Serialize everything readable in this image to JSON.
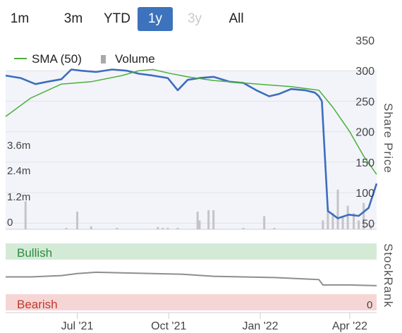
{
  "range_selector": {
    "buttons": [
      {
        "label": "1m",
        "state": "normal"
      },
      {
        "label": "3m",
        "state": "normal"
      },
      {
        "label": "YTD",
        "state": "normal"
      },
      {
        "label": "1y",
        "state": "active"
      },
      {
        "label": "3y",
        "state": "disabled"
      },
      {
        "label": "All",
        "state": "normal"
      }
    ]
  },
  "colors": {
    "price_line": "#3d6dbd",
    "sma_line": "#4caf3a",
    "volume_bar": "#c4c4c8",
    "stockrank_line": "#8e8e8e",
    "bullish_band": "#d3ead7",
    "bullish_text": "#2e8b3e",
    "bearish_band": "#f6d5d5",
    "bearish_text": "#c0392b",
    "active_button": "#3d72bc"
  },
  "chart_data": [
    {
      "type": "line",
      "panel": "price",
      "y_axis_title": "Share Price",
      "y_ticks": [
        50,
        100,
        150,
        200,
        250,
        300,
        350
      ],
      "ylim": [
        40,
        350
      ],
      "x_ticks": [
        "Jul '21",
        "Oct '21",
        "Jan '22",
        "Apr '22"
      ],
      "legend": [
        "SMA (50)",
        "Volume"
      ],
      "series": [
        {
          "name": "",
          "style": "price",
          "x": [
            "2021-04-20",
            "2021-05-05",
            "2021-05-20",
            "2021-06-01",
            "2021-06-15",
            "2021-06-25",
            "2021-07-05",
            "2021-07-20",
            "2021-08-05",
            "2021-08-20",
            "2021-09-01",
            "2021-09-15",
            "2021-09-30",
            "2021-10-10",
            "2021-10-20",
            "2021-11-01",
            "2021-11-15",
            "2021-12-01",
            "2021-12-15",
            "2021-12-28",
            "2022-01-10",
            "2022-01-20",
            "2022-02-01",
            "2022-02-15",
            "2022-02-25",
            "2022-03-01",
            "2022-03-04",
            "2022-03-10",
            "2022-03-20",
            "2022-03-31",
            "2022-04-10",
            "2022-04-20",
            "2022-04-28"
          ],
          "y": [
            292,
            288,
            278,
            282,
            286,
            302,
            300,
            298,
            302,
            300,
            295,
            292,
            288,
            268,
            285,
            288,
            290,
            282,
            280,
            268,
            258,
            262,
            270,
            268,
            264,
            258,
            250,
            70,
            58,
            64,
            62,
            75,
            115
          ]
        },
        {
          "name": "SMA (50)",
          "style": "sma",
          "x": [
            "2021-04-20",
            "2021-05-15",
            "2021-06-15",
            "2021-07-15",
            "2021-08-15",
            "2021-09-01",
            "2021-09-15",
            "2021-10-01",
            "2021-10-20",
            "2021-11-15",
            "2021-12-15",
            "2022-01-15",
            "2022-02-01",
            "2022-02-20",
            "2022-03-01",
            "2022-03-15",
            "2022-04-01",
            "2022-04-15",
            "2022-04-28"
          ],
          "y": [
            225,
            255,
            278,
            282,
            292,
            300,
            302,
            296,
            290,
            284,
            280,
            276,
            274,
            270,
            268,
            240,
            200,
            160,
            130
          ]
        }
      ]
    },
    {
      "type": "bar",
      "panel": "volume",
      "name": "Volume",
      "y_ticks": [
        "0",
        "1.2m",
        "2.4m",
        "3.6m"
      ],
      "ylim": [
        0,
        4.8
      ],
      "x": [
        "2021-05-10",
        "2021-06-20",
        "2021-07-01",
        "2021-07-15",
        "2021-08-10",
        "2021-09-20",
        "2021-09-25",
        "2021-09-30",
        "2021-10-10",
        "2021-10-30",
        "2021-11-01",
        "2021-11-10",
        "2021-11-15",
        "2021-12-15",
        "2022-01-05",
        "2022-01-15",
        "2022-03-05",
        "2022-03-10",
        "2022-03-15",
        "2022-03-20",
        "2022-03-25",
        "2022-03-30",
        "2022-04-05",
        "2022-04-10",
        "2022-04-15",
        "2022-04-22"
      ],
      "values": [
        1.9,
        0.1,
        1.2,
        0.2,
        0.1,
        0.15,
        0.1,
        0.1,
        0.1,
        1.2,
        0.6,
        1.3,
        1.3,
        0.1,
        0.9,
        0.1,
        0.6,
        1.5,
        1.1,
        2.7,
        0.9,
        1.6,
        1.1,
        0.6,
        1.8,
        0.3
      ]
    },
    {
      "type": "line",
      "panel": "stockrank",
      "y_axis_title": "StockRank",
      "bands": [
        "Bullish",
        "Bearish"
      ],
      "y_ticks": [
        0
      ],
      "ylim": [
        0,
        100
      ],
      "series": [
        {
          "name": "",
          "x": [
            "2021-04-20",
            "2021-05-15",
            "2021-06-15",
            "2021-07-01",
            "2021-07-20",
            "2021-08-15",
            "2021-09-15",
            "2021-10-15",
            "2021-11-15",
            "2021-12-15",
            "2022-01-15",
            "2022-02-15",
            "2022-03-01",
            "2022-03-05",
            "2022-04-01",
            "2022-04-28"
          ],
          "y": [
            50,
            50,
            52,
            55,
            57,
            56,
            55,
            54,
            51,
            50,
            49,
            47,
            46,
            38,
            38,
            37
          ]
        }
      ]
    }
  ]
}
